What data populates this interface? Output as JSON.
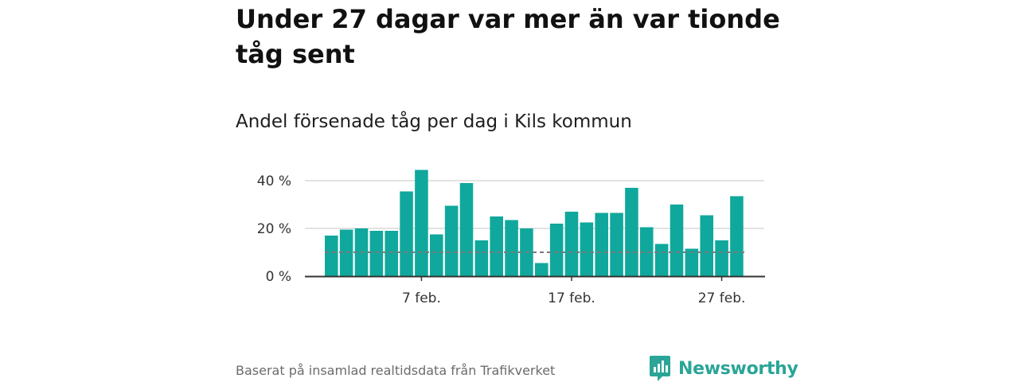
{
  "headline": "Under 27 dagar var mer än var tionde tåg sent",
  "subtitle": "Andel försenade tåg per dag i Kils kommun",
  "source": "Baserat på insamlad realtidsdata från Trafikverket",
  "brand": {
    "name": "Newsworthy",
    "icon": "newsworthy-logo-icon",
    "color": "#2aa597"
  },
  "colors": {
    "bar": "#10a89c",
    "reference_line": "#7a7a7a",
    "grid": "#d9d9d9",
    "axis": "#333333"
  },
  "chart_data": {
    "type": "bar",
    "title": "Andel försenade tåg per dag i Kils kommun",
    "xlabel": "",
    "ylabel": "",
    "x": [
      "1 feb.",
      "2 feb.",
      "3 feb.",
      "4 feb.",
      "5 feb.",
      "6 feb.",
      "7 feb.",
      "8 feb.",
      "9 feb.",
      "10 feb.",
      "11 feb.",
      "12 feb.",
      "13 feb.",
      "14 feb.",
      "15 feb.",
      "16 feb.",
      "17 feb.",
      "18 feb.",
      "19 feb.",
      "20 feb.",
      "21 feb.",
      "22 feb.",
      "23 feb.",
      "24 feb.",
      "25 feb.",
      "26 feb.",
      "27 feb.",
      "28 feb."
    ],
    "values": [
      17,
      19.5,
      20,
      19,
      19,
      35.5,
      44.5,
      17.5,
      29.5,
      39,
      15,
      25,
      23.5,
      20,
      5.5,
      22,
      27,
      22.5,
      26.5,
      26.5,
      37,
      20.5,
      13.5,
      30,
      11.5,
      25.5,
      15,
      33.5
    ],
    "unit": "%",
    "ylim": [
      0,
      45
    ],
    "y_ticks": [
      0,
      20,
      40
    ],
    "y_tick_labels": [
      "0 %",
      "20 %",
      "40 %"
    ],
    "x_ticks": [
      "7 feb.",
      "17 feb.",
      "27 feb."
    ],
    "reference_line": 10,
    "grid": true,
    "legend": "none"
  }
}
